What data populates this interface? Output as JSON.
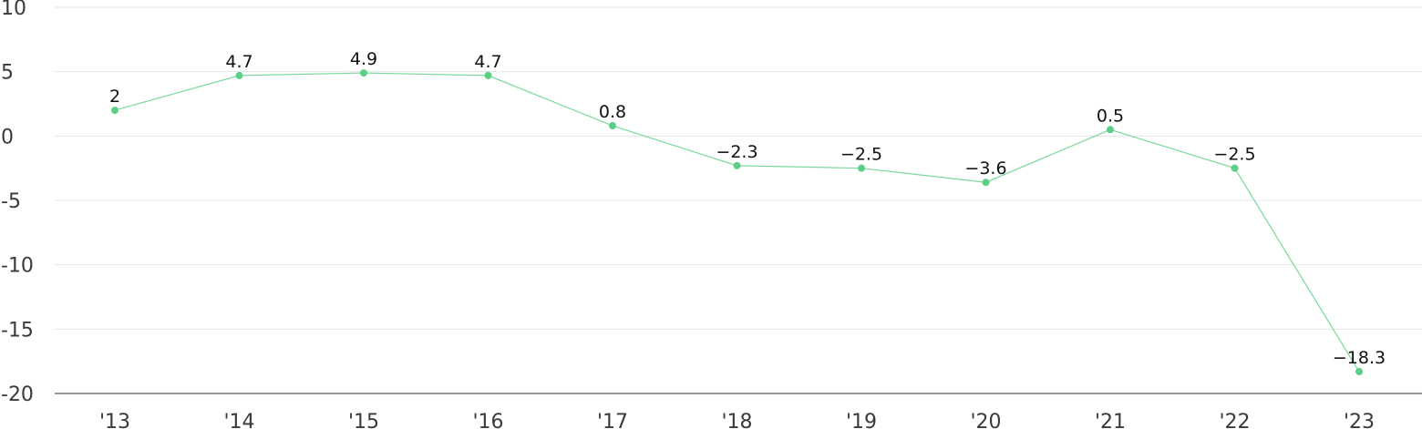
{
  "chart_data": {
    "type": "line",
    "categories": [
      "'13",
      "'14",
      "'15",
      "'16",
      "'17",
      "'18",
      "'19",
      "'20",
      "'21",
      "'22",
      "'23"
    ],
    "series": [
      {
        "values": [
          2,
          4.7,
          4.9,
          4.7,
          0.8,
          -2.3,
          -2.5,
          -3.6,
          0.5,
          -2.5,
          -18.3
        ]
      }
    ],
    "data_labels": [
      "2",
      "4.7",
      "4.9",
      "4.7",
      "0.8",
      "−2.3",
      "−2.5",
      "−3.6",
      "0.5",
      "−2.5",
      "−18.3"
    ],
    "yticks": [
      10,
      5,
      0,
      -5,
      -10,
      -15,
      -20
    ],
    "ytick_labels": [
      "10",
      "5",
      "0",
      "-5",
      "-10",
      "-15",
      "-20"
    ],
    "ylim": [
      -20,
      10
    ],
    "grid": true,
    "colors": {
      "line": "#7ad99b",
      "marker": "#5ccf86"
    }
  }
}
